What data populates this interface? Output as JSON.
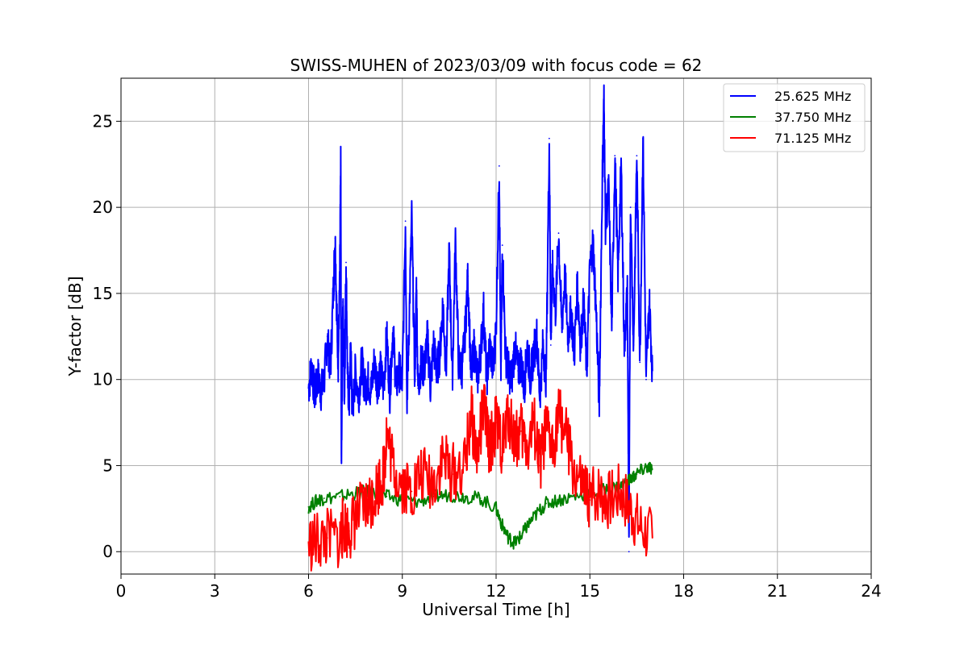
{
  "chart_data": {
    "type": "line",
    "title": "SWISS-MUHEN of 2023/03/09 with focus code = 62",
    "xlabel": "Universal Time [h]",
    "ylabel": "Y-factor [dB]",
    "xlim": [
      0,
      24
    ],
    "ylim": [
      -1.3,
      27.5
    ],
    "xticks": [
      0,
      3,
      6,
      9,
      12,
      15,
      18,
      21,
      24
    ],
    "yticks": [
      0,
      5,
      10,
      15,
      20,
      25
    ],
    "grid": true,
    "legend_position": "top-right",
    "series": [
      {
        "name": "25.625 MHz",
        "color": "#0000ff",
        "x": [
          6.0,
          6.1,
          6.2,
          6.3,
          6.4,
          6.5,
          6.6,
          6.7,
          6.8,
          6.85,
          6.9,
          6.95,
          7.0,
          7.03,
          7.05,
          7.1,
          7.15,
          7.2,
          7.25,
          7.3,
          7.35,
          7.4,
          7.5,
          7.6,
          7.7,
          7.8,
          7.9,
          8.0,
          8.1,
          8.2,
          8.3,
          8.4,
          8.5,
          8.6,
          8.7,
          8.8,
          8.9,
          9.0,
          9.1,
          9.15,
          9.2,
          9.3,
          9.4,
          9.45,
          9.5,
          9.6,
          9.7,
          9.8,
          9.9,
          10.0,
          10.1,
          10.2,
          10.3,
          10.4,
          10.5,
          10.6,
          10.7,
          10.8,
          10.9,
          11.0,
          11.1,
          11.2,
          11.3,
          11.4,
          11.5,
          11.6,
          11.7,
          11.8,
          11.9,
          12.0,
          12.1,
          12.15,
          12.2,
          12.3,
          12.4,
          12.5,
          12.6,
          12.7,
          12.8,
          12.9,
          13.0,
          13.1,
          13.2,
          13.3,
          13.4,
          13.5,
          13.6,
          13.7,
          13.75,
          13.8,
          13.9,
          14.0,
          14.1,
          14.2,
          14.3,
          14.4,
          14.5,
          14.6,
          14.7,
          14.8,
          14.9,
          15.0,
          15.1,
          15.2,
          15.3,
          15.4,
          15.45,
          15.5,
          15.6,
          15.7,
          15.8,
          15.9,
          16.0,
          16.1,
          16.2,
          16.25,
          16.3,
          16.4,
          16.5,
          16.6,
          16.7,
          16.8,
          16.9,
          17.0
        ],
        "y": [
          9.5,
          10.8,
          9.0,
          10.2,
          9.3,
          10.0,
          12.5,
          10.5,
          15.5,
          18.2,
          14.0,
          11.0,
          16.0,
          22.4,
          5.3,
          14.5,
          9.0,
          16.8,
          10.0,
          8.5,
          12.0,
          8.0,
          10.5,
          9.0,
          11.0,
          9.5,
          10.0,
          9.3,
          11.0,
          9.8,
          10.5,
          9.5,
          12.5,
          9.2,
          13.0,
          9.5,
          10.5,
          9.8,
          19.2,
          9.0,
          12.0,
          19.4,
          10.0,
          15.5,
          9.5,
          11.0,
          10.5,
          12.5,
          9.6,
          12.0,
          10.5,
          11.5,
          14.5,
          10.5,
          17.5,
          10.0,
          18.0,
          11.0,
          10.5,
          12.5,
          16.0,
          10.0,
          12.0,
          10.0,
          11.5,
          14.0,
          10.0,
          12.0,
          10.5,
          13.0,
          22.4,
          10.0,
          17.8,
          11.5,
          10.5,
          10.0,
          12.0,
          10.5,
          11.0,
          9.5,
          12.0,
          10.0,
          11.5,
          12.5,
          9.0,
          12.0,
          10.0,
          24.0,
          12.0,
          16.5,
          14.0,
          18.5,
          13.0,
          16.0,
          12.5,
          14.0,
          11.5,
          15.5,
          12.0,
          14.5,
          10.5,
          16.5,
          18.0,
          14.0,
          8.5,
          22.0,
          26.2,
          19.0,
          21.0,
          13.0,
          23.0,
          16.0,
          22.5,
          12.0,
          15.0,
          0.0,
          20.0,
          12.0,
          23.0,
          11.0,
          24.0,
          10.0,
          14.5,
          10.5
        ]
      },
      {
        "name": "37.750 MHz",
        "color": "#008000",
        "x": [
          6.0,
          6.3,
          6.5,
          7.0,
          7.5,
          8.0,
          8.5,
          9.0,
          9.5,
          10.0,
          10.5,
          11.0,
          11.5,
          12.0,
          12.2,
          12.4,
          12.6,
          12.8,
          13.0,
          13.3,
          13.6,
          14.0,
          14.5,
          15.0,
          15.5,
          16.0,
          16.3,
          16.5,
          16.8,
          17.0
        ],
        "y": [
          2.6,
          3.0,
          3.1,
          3.2,
          3.4,
          3.5,
          3.2,
          3.0,
          2.9,
          3.2,
          3.3,
          3.2,
          3.1,
          2.5,
          1.5,
          0.8,
          0.5,
          0.9,
          1.5,
          2.2,
          2.8,
          3.0,
          3.2,
          3.4,
          3.6,
          3.8,
          4.2,
          4.5,
          4.9,
          4.8
        ]
      },
      {
        "name": "71.125 MHz",
        "color": "#ff0000",
        "x": [
          6.0,
          6.3,
          6.6,
          7.0,
          7.1,
          7.3,
          7.5,
          7.8,
          8.0,
          8.2,
          8.4,
          8.5,
          8.7,
          9.0,
          9.3,
          9.6,
          10.0,
          10.3,
          10.6,
          11.0,
          11.2,
          11.4,
          11.6,
          11.8,
          12.0,
          12.2,
          12.4,
          12.6,
          12.8,
          13.0,
          13.2,
          13.4,
          13.6,
          13.8,
          14.0,
          14.2,
          14.5,
          14.8,
          15.0,
          15.3,
          15.6,
          16.0,
          16.3,
          16.6,
          17.0
        ],
        "y": [
          0.5,
          0.6,
          0.8,
          0.7,
          1.5,
          1.2,
          2.0,
          2.5,
          3.0,
          3.8,
          4.5,
          7.0,
          5.0,
          4.0,
          3.5,
          4.5,
          4.0,
          5.5,
          4.5,
          5.0,
          8.0,
          5.5,
          8.5,
          6.0,
          7.5,
          6.0,
          8.0,
          6.5,
          7.0,
          6.0,
          7.5,
          5.0,
          7.0,
          6.0,
          8.0,
          7.0,
          4.5,
          3.5,
          3.0,
          3.5,
          3.0,
          3.5,
          2.5,
          1.5,
          0.8
        ]
      }
    ]
  }
}
